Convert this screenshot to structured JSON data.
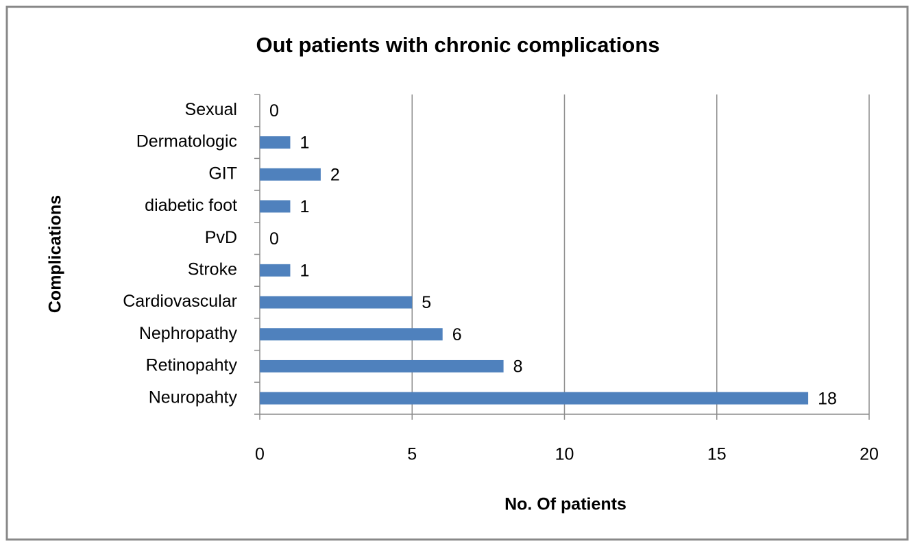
{
  "chart_data": {
    "type": "bar",
    "orientation": "horizontal",
    "title": "Out patients with chronic complications",
    "x_label": "No. Of patients",
    "y_label": "Complications",
    "categories": [
      "Neuropahty",
      "Retinopahty",
      "Nephropathy",
      "Cardiovascular",
      "Stroke",
      "PvD",
      "diabetic foot",
      "GIT",
      "Dermatologic",
      "Sexual"
    ],
    "values": [
      18,
      8,
      6,
      5,
      1,
      0,
      1,
      2,
      1,
      0
    ],
    "color": "#4f81bd",
    "xlim": [
      0,
      20
    ],
    "xticks": [
      0,
      5,
      10,
      15,
      20
    ],
    "grid": true
  }
}
